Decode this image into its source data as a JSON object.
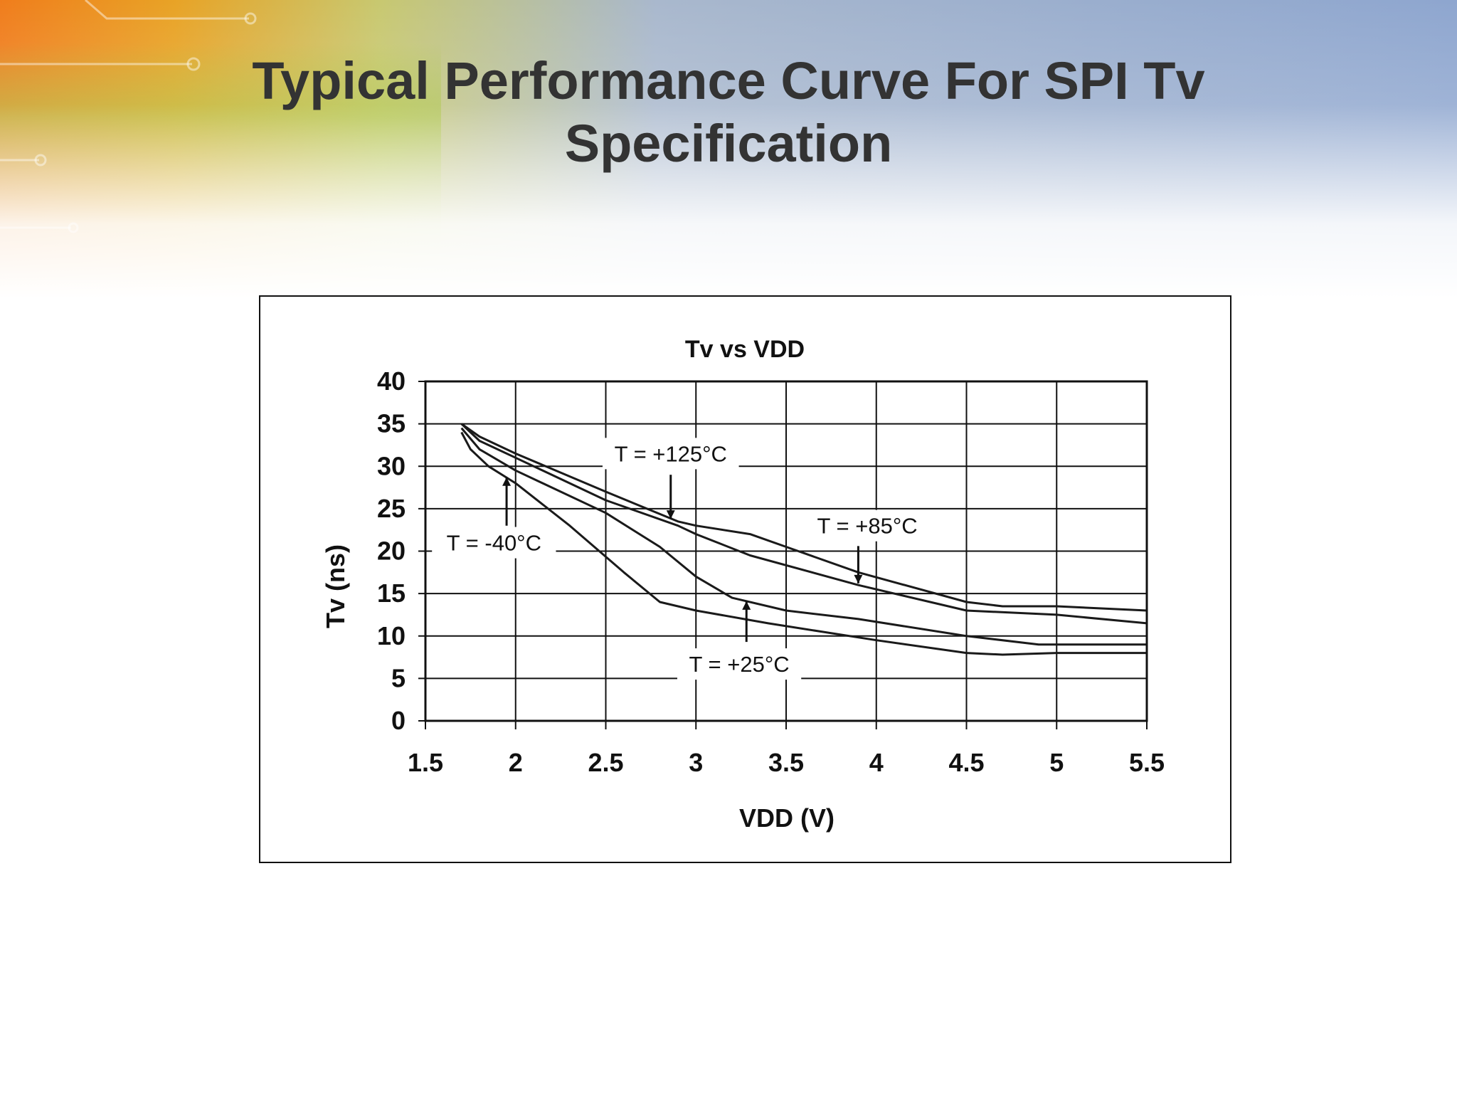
{
  "slide": {
    "title_line1": "Typical Performance Curve For SPI Tv",
    "title_line2": "Specification"
  },
  "chart_data": {
    "type": "line",
    "title": "Tv vs VDD",
    "xlabel": "VDD (V)",
    "ylabel": "Tv (ns)",
    "xlim": [
      1.5,
      5.5
    ],
    "ylim": [
      0,
      40
    ],
    "xticks": [
      "1.5",
      "2",
      "2.5",
      "3",
      "3.5",
      "4",
      "4.5",
      "5",
      "5.5"
    ],
    "yticks": [
      "0",
      "5",
      "10",
      "15",
      "20",
      "25",
      "30",
      "35",
      "40"
    ],
    "grid": true,
    "series": [
      {
        "name": "T = +125°C",
        "x": [
          1.7,
          1.8,
          2.0,
          2.5,
          2.9,
          3.0,
          3.3,
          3.5,
          3.9,
          4.5,
          4.7,
          5.0,
          5.5
        ],
        "y": [
          35,
          33.5,
          31.5,
          27,
          23.5,
          23,
          22,
          20.5,
          17.5,
          14,
          13.5,
          13.5,
          13
        ]
      },
      {
        "name": "T = +85°C",
        "x": [
          1.7,
          1.8,
          2.0,
          2.5,
          2.9,
          3.0,
          3.3,
          3.9,
          4.5,
          5.0,
          5.5
        ],
        "y": [
          35,
          33,
          31,
          26,
          23,
          22,
          19.5,
          16,
          13,
          12.5,
          11.5
        ]
      },
      {
        "name": "T = +25°C",
        "x": [
          1.7,
          1.8,
          2.0,
          2.5,
          2.8,
          3.0,
          3.2,
          3.5,
          3.9,
          4.5,
          4.9,
          5.0,
          5.5
        ],
        "y": [
          34.5,
          32,
          29.5,
          24.5,
          20.5,
          17,
          14.5,
          13,
          12,
          10,
          9,
          9,
          9
        ]
      },
      {
        "name": "T = -40°C",
        "x": [
          1.7,
          1.75,
          1.85,
          2.0,
          2.3,
          2.6,
          2.8,
          3.0,
          3.4,
          4.0,
          4.5,
          4.7,
          5.0,
          5.5
        ],
        "y": [
          34,
          32,
          30,
          28,
          23,
          17.5,
          14,
          13,
          11.5,
          9.5,
          8,
          7.8,
          8,
          8
        ]
      }
    ],
    "annotations": [
      {
        "text": "T = +125°C",
        "series": "T = +125°C"
      },
      {
        "text": "T = +85°C",
        "series": "T = +85°C"
      },
      {
        "text": "T = +25°C",
        "series": "T = +25°C"
      },
      {
        "text": "T = -40°C",
        "series": "T = -40°C"
      }
    ]
  }
}
